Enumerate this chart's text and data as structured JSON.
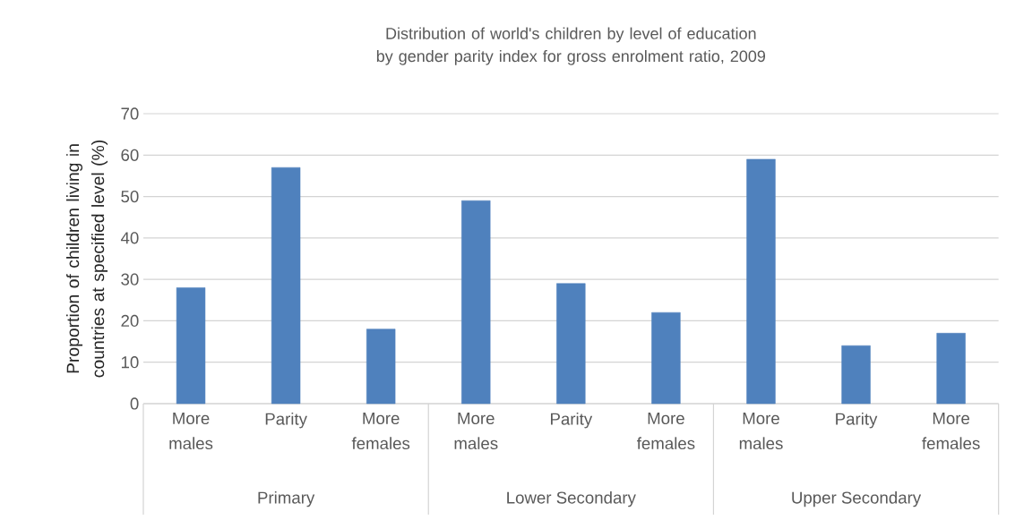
{
  "chart_data": {
    "type": "bar",
    "title": "Distribution of world's children by level of education by gender parity index for gross enrolment ratio, 2009",
    "ylabel": "Proportion of children living in countries at specified level (%)",
    "categories": [
      "More males",
      "Parity",
      "More females",
      "More males",
      "Parity",
      "More females",
      "More males",
      "Parity",
      "More females"
    ],
    "values": [
      28,
      57,
      18,
      49,
      29,
      22,
      59,
      14,
      17
    ],
    "color": "#4f81bd",
    "ylim": [
      0,
      70
    ],
    "yticks": [
      0,
      10,
      20,
      30,
      40,
      50,
      60,
      70
    ],
    "grid": "y",
    "annotations": [
      "Primary",
      "Lower Secondary",
      "Upper Secondary"
    ]
  }
}
